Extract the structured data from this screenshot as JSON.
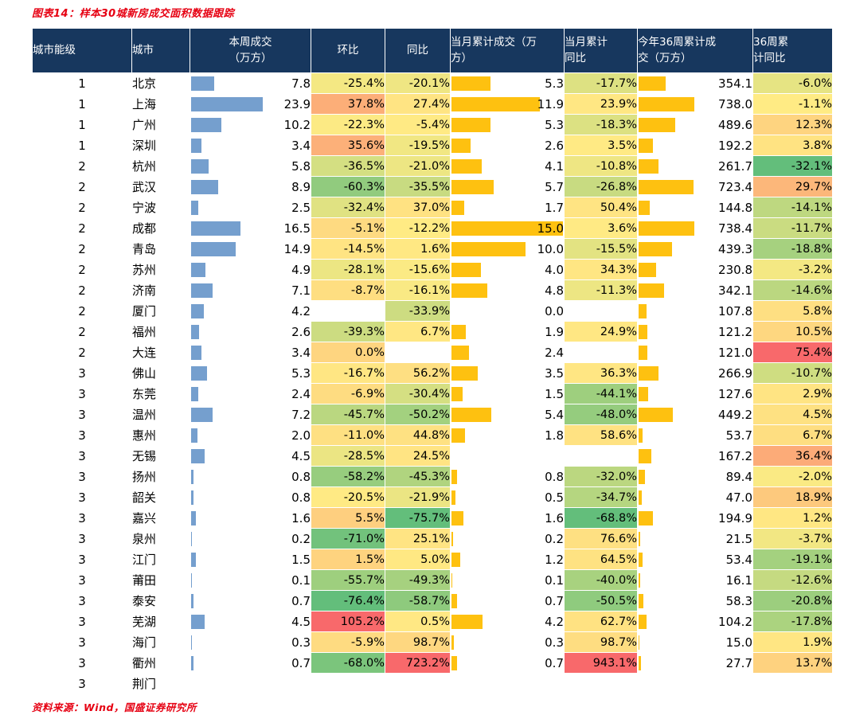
{
  "figure": {
    "title": "图表14：样本30城新房成交面积数据跟踪",
    "source": "资料来源：Wind，国盛证券研究所"
  },
  "colors": {
    "header_bg": "#17375E",
    "header_text": "#FFFFFF",
    "bar_blue": "#759FCE",
    "bar_orange": "#FEC110",
    "scale_low_green": "#63BE7B",
    "scale_mid_yellow": "#FFEB84",
    "scale_high_red": "#F8696B",
    "title_red": "#E60012"
  },
  "chart_data": {
    "type": "table",
    "title": "样本30城新房成交面积数据跟踪",
    "figure_label": "图表14",
    "headers": [
      {
        "key": "tier",
        "label": "城市能级"
      },
      {
        "key": "city",
        "label": "城市"
      },
      {
        "key": "week",
        "label": "本周成交\n（万方）"
      },
      {
        "key": "wow",
        "label": "环比"
      },
      {
        "key": "yoy",
        "label": "同比"
      },
      {
        "key": "mtd",
        "label": "当月累计成交（万\n方）"
      },
      {
        "key": "mtd_yoy",
        "label": "当月累计\n同比"
      },
      {
        "key": "ytd",
        "label": "今年36周累计成\n交（万方）"
      },
      {
        "key": "ytd_yoy",
        "label": "36周累\n计同比"
      }
    ],
    "units": "万方",
    "rows": [
      {
        "tier": 1,
        "city": "北京",
        "week": 7.8,
        "wow": -25.4,
        "yoy": -20.1,
        "mtd": 5.3,
        "mtd_yoy": -17.7,
        "ytd": 354.1,
        "ytd_yoy": -6.0
      },
      {
        "tier": 1,
        "city": "上海",
        "week": 23.9,
        "wow": 37.8,
        "yoy": 27.4,
        "mtd": 11.9,
        "mtd_yoy": 23.9,
        "ytd": 738.0,
        "ytd_yoy": -1.1
      },
      {
        "tier": 1,
        "city": "广州",
        "week": 10.2,
        "wow": -22.3,
        "yoy": -5.4,
        "mtd": 5.3,
        "mtd_yoy": -18.3,
        "ytd": 489.6,
        "ytd_yoy": 12.3
      },
      {
        "tier": 1,
        "city": "深圳",
        "week": 3.4,
        "wow": 35.6,
        "yoy": -19.5,
        "mtd": 2.6,
        "mtd_yoy": 3.5,
        "ytd": 192.2,
        "ytd_yoy": 3.8
      },
      {
        "tier": 2,
        "city": "杭州",
        "week": 5.8,
        "wow": -36.5,
        "yoy": -21.0,
        "mtd": 4.1,
        "mtd_yoy": -10.8,
        "ytd": 261.7,
        "ytd_yoy": -32.1
      },
      {
        "tier": 2,
        "city": "武汉",
        "week": 8.9,
        "wow": -60.3,
        "yoy": -35.5,
        "mtd": 5.7,
        "mtd_yoy": -26.8,
        "ytd": 723.4,
        "ytd_yoy": 29.7
      },
      {
        "tier": 2,
        "city": "宁波",
        "week": 2.5,
        "wow": -32.4,
        "yoy": 37.0,
        "mtd": 1.7,
        "mtd_yoy": 50.4,
        "ytd": 144.8,
        "ytd_yoy": -14.1
      },
      {
        "tier": 2,
        "city": "成都",
        "week": 16.5,
        "wow": -5.1,
        "yoy": -12.2,
        "mtd": 15.0,
        "mtd_yoy": 3.6,
        "ytd": 738.4,
        "ytd_yoy": -11.7
      },
      {
        "tier": 2,
        "city": "青岛",
        "week": 14.9,
        "wow": -14.5,
        "yoy": 1.6,
        "mtd": 10.0,
        "mtd_yoy": -15.5,
        "ytd": 439.3,
        "ytd_yoy": -18.8
      },
      {
        "tier": 2,
        "city": "苏州",
        "week": 4.9,
        "wow": -28.1,
        "yoy": -15.6,
        "mtd": 4.0,
        "mtd_yoy": 34.3,
        "ytd": 230.8,
        "ytd_yoy": -3.2
      },
      {
        "tier": 2,
        "city": "济南",
        "week": 7.1,
        "wow": -8.7,
        "yoy": -16.1,
        "mtd": 4.8,
        "mtd_yoy": -11.3,
        "ytd": 342.1,
        "ytd_yoy": -14.6
      },
      {
        "tier": 2,
        "city": "厦门",
        "week": 4.2,
        "wow": null,
        "yoy": -33.9,
        "mtd": 0.0,
        "mtd_yoy": null,
        "ytd": 107.8,
        "ytd_yoy": 5.8
      },
      {
        "tier": 2,
        "city": "福州",
        "week": 2.6,
        "wow": -39.3,
        "yoy": 6.7,
        "mtd": 1.9,
        "mtd_yoy": 24.9,
        "ytd": 121.2,
        "ytd_yoy": 10.5
      },
      {
        "tier": 2,
        "city": "大连",
        "week": 3.4,
        "wow": 0.0,
        "yoy": null,
        "mtd": 2.4,
        "mtd_yoy": null,
        "ytd": 121.0,
        "ytd_yoy": 75.4
      },
      {
        "tier": 3,
        "city": "佛山",
        "week": 5.3,
        "wow": -16.7,
        "yoy": 56.2,
        "mtd": 3.5,
        "mtd_yoy": 36.3,
        "ytd": 266.9,
        "ytd_yoy": -10.7
      },
      {
        "tier": 3,
        "city": "东莞",
        "week": 2.4,
        "wow": -6.9,
        "yoy": -30.4,
        "mtd": 1.5,
        "mtd_yoy": -44.1,
        "ytd": 127.6,
        "ytd_yoy": 2.9
      },
      {
        "tier": 3,
        "city": "温州",
        "week": 7.2,
        "wow": -45.7,
        "yoy": -50.2,
        "mtd": 5.4,
        "mtd_yoy": -48.0,
        "ytd": 449.2,
        "ytd_yoy": 4.5
      },
      {
        "tier": 3,
        "city": "惠州",
        "week": 2.0,
        "wow": -11.0,
        "yoy": 44.8,
        "mtd": 1.8,
        "mtd_yoy": 58.6,
        "ytd": 53.7,
        "ytd_yoy": 6.7
      },
      {
        "tier": 3,
        "city": "无锡",
        "week": 4.5,
        "wow": -28.5,
        "yoy": 24.5,
        "mtd": null,
        "mtd_yoy": null,
        "ytd": 167.2,
        "ytd_yoy": 36.4
      },
      {
        "tier": 3,
        "city": "扬州",
        "week": 0.8,
        "wow": -58.2,
        "yoy": -45.3,
        "mtd": 0.8,
        "mtd_yoy": -32.0,
        "ytd": 89.4,
        "ytd_yoy": -2.0
      },
      {
        "tier": 3,
        "city": "韶关",
        "week": 0.8,
        "wow": -20.5,
        "yoy": -21.9,
        "mtd": 0.5,
        "mtd_yoy": -34.7,
        "ytd": 47.0,
        "ytd_yoy": 18.9
      },
      {
        "tier": 3,
        "city": "嘉兴",
        "week": 1.6,
        "wow": 5.5,
        "yoy": -75.7,
        "mtd": 1.6,
        "mtd_yoy": -68.8,
        "ytd": 194.9,
        "ytd_yoy": 1.2
      },
      {
        "tier": 3,
        "city": "泉州",
        "week": 0.2,
        "wow": -71.0,
        "yoy": 25.1,
        "mtd": 0.2,
        "mtd_yoy": 76.6,
        "ytd": 21.5,
        "ytd_yoy": -3.7
      },
      {
        "tier": 3,
        "city": "江门",
        "week": 1.5,
        "wow": 1.5,
        "yoy": 5.0,
        "mtd": 1.2,
        "mtd_yoy": 64.5,
        "ytd": 53.4,
        "ytd_yoy": -19.1
      },
      {
        "tier": 3,
        "city": "莆田",
        "week": 0.1,
        "wow": -55.7,
        "yoy": -49.3,
        "mtd": 0.1,
        "mtd_yoy": -40.0,
        "ytd": 16.1,
        "ytd_yoy": -12.6
      },
      {
        "tier": 3,
        "city": "泰安",
        "week": 0.7,
        "wow": -76.4,
        "yoy": -58.7,
        "mtd": 0.7,
        "mtd_yoy": -50.5,
        "ytd": 58.3,
        "ytd_yoy": -20.8
      },
      {
        "tier": 3,
        "city": "芜湖",
        "week": 4.5,
        "wow": 105.2,
        "yoy": 0.5,
        "mtd": 4.2,
        "mtd_yoy": 62.7,
        "ytd": 104.2,
        "ytd_yoy": -17.8
      },
      {
        "tier": 3,
        "city": "海门",
        "week": 0.3,
        "wow": -5.9,
        "yoy": 98.7,
        "mtd": 0.3,
        "mtd_yoy": 98.7,
        "ytd": 15.0,
        "ytd_yoy": 1.9
      },
      {
        "tier": 3,
        "city": "衢州",
        "week": 0.7,
        "wow": -68.0,
        "yoy": 723.2,
        "mtd": 0.7,
        "mtd_yoy": 943.1,
        "ytd": 27.7,
        "ytd_yoy": 13.7
      },
      {
        "tier": 3,
        "city": "荆门",
        "week": null,
        "wow": null,
        "yoy": null,
        "mtd": null,
        "mtd_yoy": null,
        "ytd": null,
        "ytd_yoy": null
      }
    ]
  }
}
